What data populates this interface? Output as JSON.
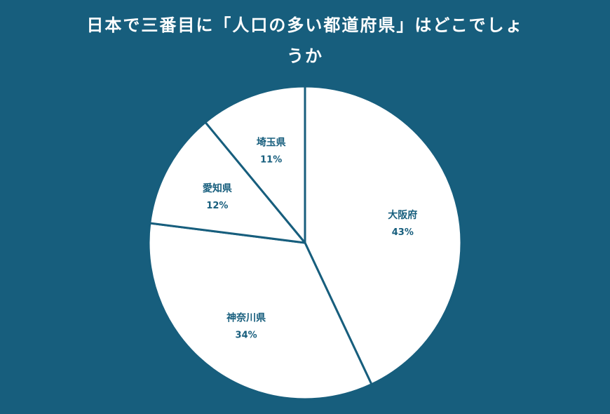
{
  "title": {
    "line1": "日本で三番目に「人口の多い都道府県」はどこでしょ",
    "line2": "うか"
  },
  "chart_data": {
    "type": "pie",
    "title": "日本で三番目に「人口の多い都道府県」はどこでしょうか",
    "start_angle_deg": 0,
    "direction": "clockwise",
    "slices": [
      {
        "label": "大阪府",
        "value": 43,
        "value_label": "43%"
      },
      {
        "label": "神奈川県",
        "value": 34,
        "value_label": "34%"
      },
      {
        "label": "愛知県",
        "value": 12,
        "value_label": "12%"
      },
      {
        "label": "埼玉県",
        "value": 11,
        "value_label": "11%"
      }
    ],
    "colors": {
      "background": "#175e7d",
      "slice_fill": "#ffffff",
      "slice_stroke": "#175e7d",
      "label_text": "#175e7d",
      "title_text": "#ffffff"
    }
  }
}
